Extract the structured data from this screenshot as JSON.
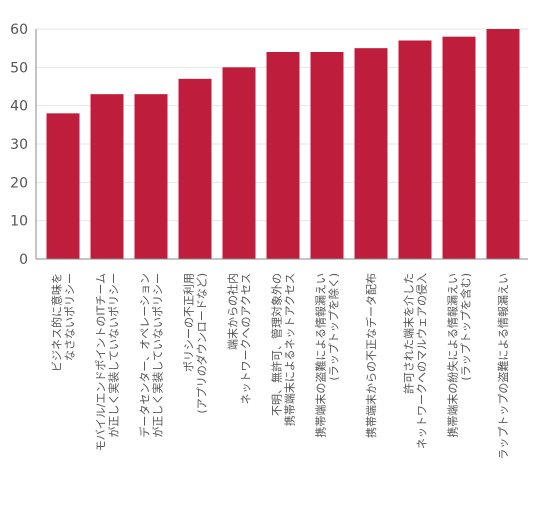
{
  "chart_data": {
    "type": "bar",
    "categories": [
      [
        "ビジネス的に意味を",
        "なさないポリシー"
      ],
      [
        "モバイル/エンドポイントのITチーム",
        "が正しく実装していないポリシー"
      ],
      [
        "データセンター、オペレーション",
        "が正しく実装していないポリシー"
      ],
      [
        "ポリシーの不正利用",
        "(アプリのダウンロードなど)"
      ],
      [
        "端末からの社内",
        "ネットワークへのアクセス"
      ],
      [
        "不明、無許可、管理対象外の",
        "携帯端末によるネットアクセス"
      ],
      [
        "携帯端末の盗難による情報漏えい",
        "(ラップトップを除く)"
      ],
      [
        "携帯端末からの不正なデータ配布"
      ],
      [
        "許可された端末を介した",
        "ネットワークへのマルウェアの侵入"
      ],
      [
        "携帯端末の紛失による情報漏えい",
        "(ラップトップを含む)"
      ],
      [
        "ラップトップの盗難による情報漏えい"
      ]
    ],
    "values": [
      38,
      43,
      43,
      47,
      50,
      54,
      54,
      55,
      57,
      58,
      60
    ],
    "ylim": [
      0,
      60
    ],
    "yticks": [
      0,
      10,
      20,
      30,
      40,
      50,
      60
    ],
    "grid": true,
    "bar_color": "#be1e3c"
  }
}
